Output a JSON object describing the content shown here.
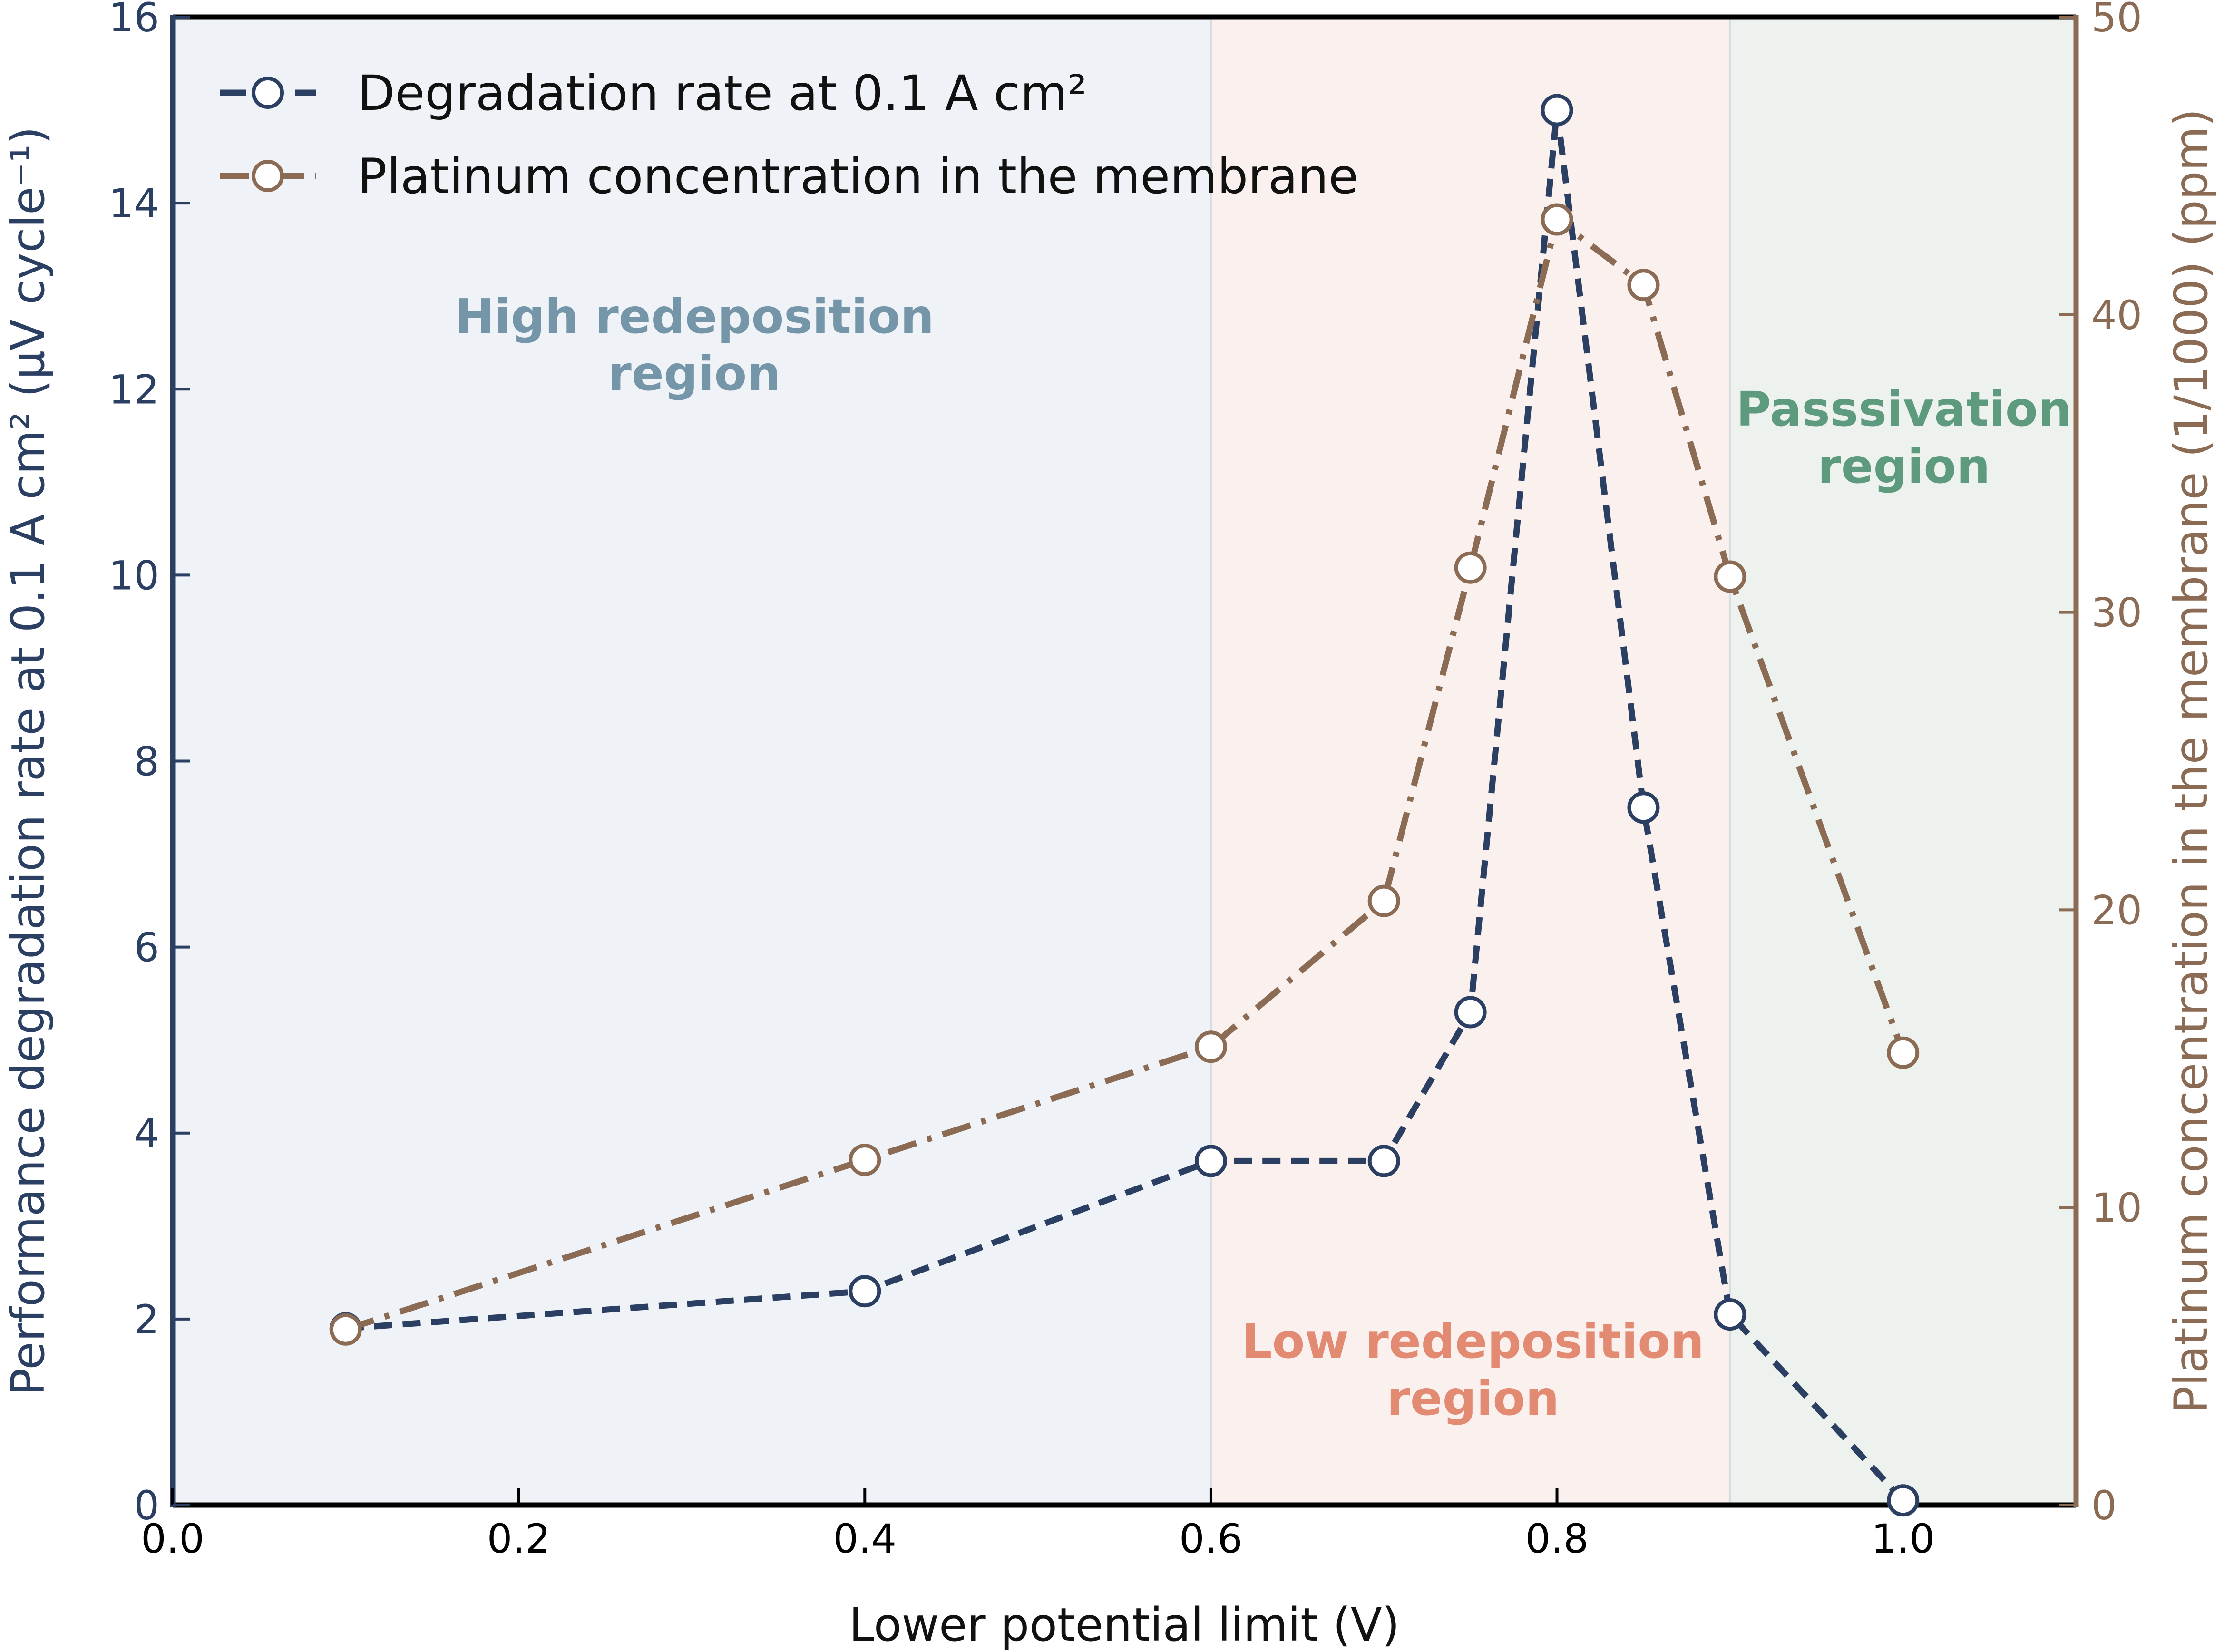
{
  "chart_data": {
    "type": "line",
    "xlabel": "Lower potential limit (V)",
    "ylabel_left": "Performance degradation rate at 0.1 A cm² (μV cycle⁻¹)",
    "ylabel_right": "Platinum concentration in the membrane (1/1000) (ppm)",
    "xlim": [
      0.0,
      1.1
    ],
    "ylim_left": [
      0,
      16
    ],
    "ylim_right": [
      0,
      50
    ],
    "x_ticks": [
      "0.0",
      "0.2",
      "0.4",
      "0.6",
      "0.8",
      "1.0"
    ],
    "y_left_ticks": [
      "0",
      "2",
      "4",
      "6",
      "8",
      "10",
      "12",
      "14",
      "16"
    ],
    "y_right_ticks": [
      "0",
      "10",
      "20",
      "30",
      "40",
      "50"
    ],
    "grid": false,
    "legend_position": "top-left",
    "series": [
      {
        "name": "Degradation rate at 0.1 A cm²",
        "axis": "left",
        "color": "#2b3f63",
        "line_style": "dashed",
        "x": [
          0.1,
          0.4,
          0.6,
          0.7,
          0.75,
          0.8,
          0.85,
          0.9,
          1.0
        ],
        "y": [
          1.9,
          2.3,
          3.7,
          3.7,
          5.3,
          15.0,
          7.5,
          2.05,
          0.05
        ]
      },
      {
        "name": "Platinum concentration in the membrane",
        "axis": "right",
        "color": "#8b6b53",
        "line_style": "dash-dot",
        "x": [
          0.1,
          0.4,
          0.6,
          0.7,
          0.75,
          0.8,
          0.85,
          0.9,
          1.0
        ],
        "y": [
          5.9,
          11.6,
          15.4,
          20.3,
          31.5,
          43.2,
          41.0,
          31.2,
          15.2
        ]
      }
    ],
    "regions": [
      {
        "label": [
          "High redeposition",
          "region"
        ],
        "x_start": 0.0,
        "x_end": 0.6,
        "fill": "#eff3f7",
        "text_color": "#7596a8"
      },
      {
        "label": [
          "Low redeposition",
          "region"
        ],
        "x_start": 0.6,
        "x_end": 0.9,
        "fill": "#faf0ee",
        "text_color": "#e38a73"
      },
      {
        "label": [
          "Passsivation",
          "region"
        ],
        "x_start": 0.9,
        "x_end": 1.1,
        "fill": "#edf2ee",
        "text_color": "#5e9b7e"
      }
    ],
    "colors": {
      "left_axis": "#2b3f63",
      "right_axis": "#8b6b53",
      "frame": "#000000"
    }
  }
}
